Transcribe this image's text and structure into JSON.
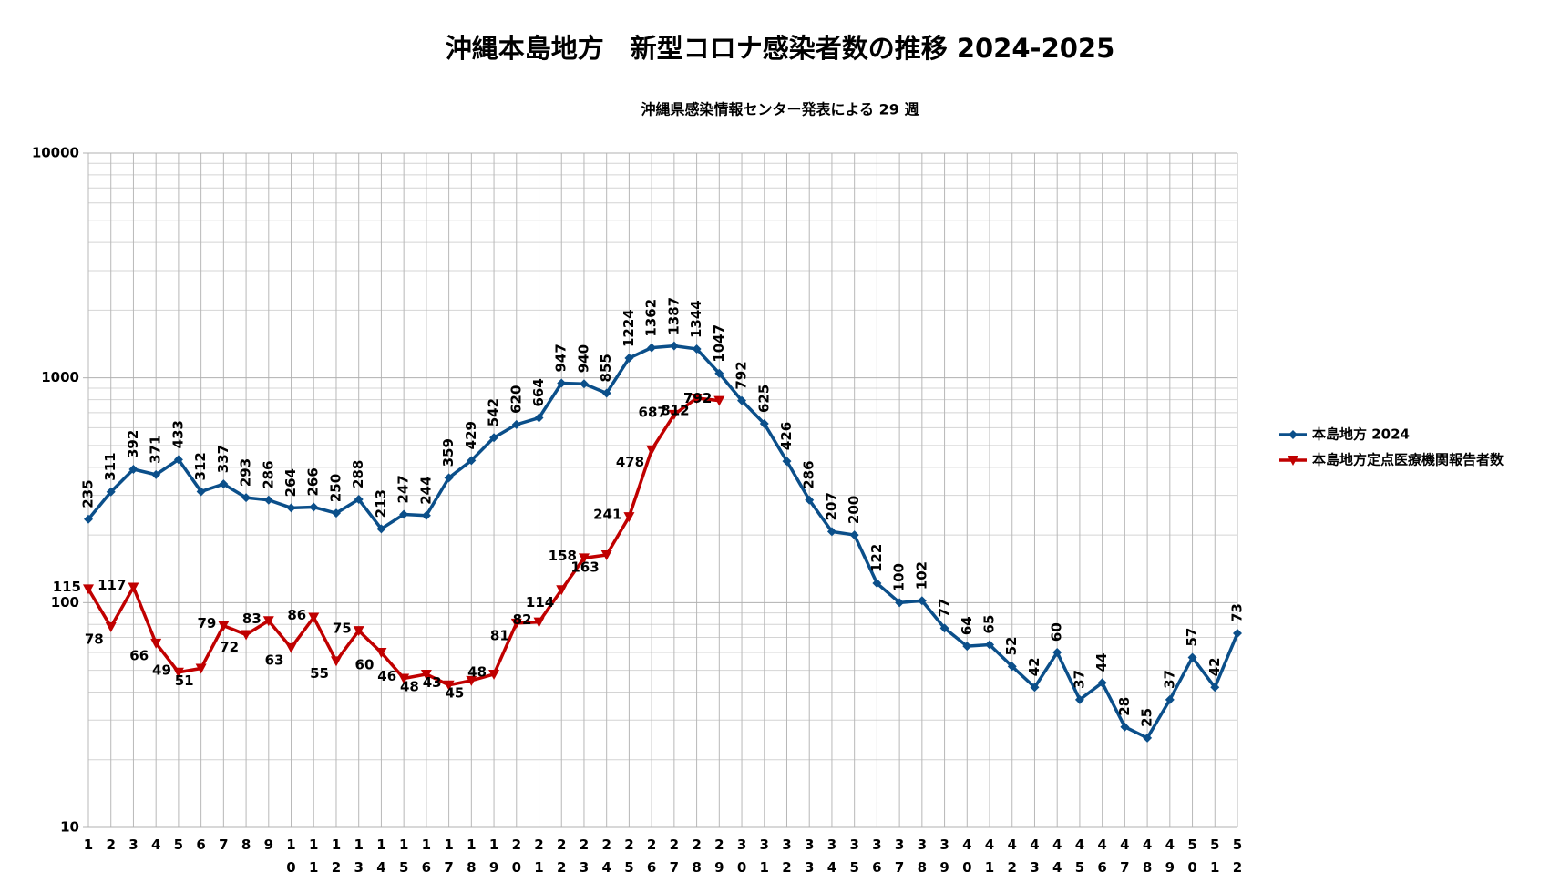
{
  "chart_data": {
    "type": "line",
    "title": "沖縄本島地方　新型コロナ感染者数の推移 2024-2025",
    "subtitle": "沖縄県感染情報センター発表による 29 週",
    "categories": [
      "1",
      "2",
      "3",
      "4",
      "5",
      "6",
      "7",
      "8",
      "9",
      "10",
      "11",
      "12",
      "13",
      "14",
      "15",
      "16",
      "17",
      "18",
      "19",
      "20",
      "21",
      "22",
      "23",
      "24",
      "25",
      "26",
      "27",
      "28",
      "29",
      "30",
      "31",
      "32",
      "33",
      "34",
      "35",
      "36",
      "37",
      "38",
      "39",
      "40",
      "41",
      "42",
      "43",
      "44",
      "45",
      "46",
      "47",
      "48",
      "49",
      "50",
      "51",
      "52"
    ],
    "series": [
      {
        "name": "本島地方 2024",
        "color": "#0b4f8a",
        "marker": "diamond",
        "values": [
          235,
          311,
          392,
          371,
          433,
          312,
          337,
          293,
          286,
          264,
          266,
          250,
          288,
          213,
          247,
          244,
          359,
          429,
          542,
          620,
          664,
          947,
          940,
          855,
          1224,
          1362,
          1387,
          1344,
          1047,
          792,
          625,
          426,
          286,
          207,
          200,
          122,
          100,
          102,
          77,
          64,
          65,
          52,
          42,
          60,
          37,
          44,
          28,
          25,
          37,
          57,
          42,
          73
        ]
      },
      {
        "name": "本島地方定点医療機関報告者数",
        "color": "#c00000",
        "marker": "triangle-down",
        "values": [
          115,
          78,
          117,
          66,
          49,
          51,
          79,
          72,
          83,
          63,
          86,
          55,
          75,
          60,
          46,
          48,
          43,
          45,
          48,
          81,
          82,
          114,
          158,
          163,
          241,
          478,
          687,
          812,
          792,
          null,
          null,
          null,
          null,
          null,
          null,
          null,
          null,
          null,
          null,
          null,
          null,
          null,
          null,
          null,
          null,
          null,
          null,
          null,
          null,
          null,
          null,
          null
        ]
      }
    ],
    "ylim": [
      10,
      10000
    ],
    "yticks": [
      10,
      100,
      1000,
      10000
    ],
    "log_y": true,
    "grid": true,
    "legend": "right"
  }
}
